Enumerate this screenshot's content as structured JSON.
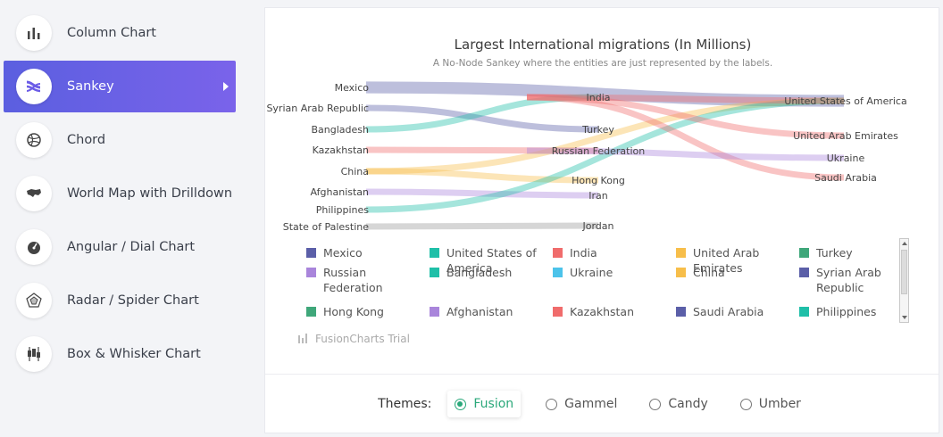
{
  "sidebar": {
    "items": [
      {
        "label": "Column Chart",
        "icon": "column-chart-icon"
      },
      {
        "label": "Sankey",
        "icon": "sankey-icon",
        "active": true
      },
      {
        "label": "Chord",
        "icon": "chord-icon"
      },
      {
        "label": "World Map with Drilldown",
        "icon": "world-map-icon"
      },
      {
        "label": "Angular / Dial Chart",
        "icon": "gauge-icon"
      },
      {
        "label": "Radar / Spider Chart",
        "icon": "radar-icon"
      },
      {
        "label": "Box & Whisker Chart",
        "icon": "box-whisker-icon"
      }
    ]
  },
  "chart": {
    "title": "Largest International migrations (In Millions)",
    "subtitle": "A No-Node Sankey where the entities are just represented by the labels."
  },
  "chart_data": {
    "type": "sankey",
    "title": "Largest International migrations (In Millions)",
    "subtitle": "A No-Node Sankey where the entities are just represented by the labels.",
    "source_nodes": [
      "Mexico",
      "Syrian Arab Republic",
      "Bangladesh",
      "Kazakhstan",
      "China",
      "Afghanistan",
      "Philippines",
      "State of Palestine"
    ],
    "middle_nodes": [
      "India",
      "Turkey",
      "Russian Federation",
      "Hong Kong",
      "Iran",
      "Jordan"
    ],
    "target_nodes": [
      "United States of America",
      "United Arab Emirates",
      "Ukraine",
      "Saudi Arabia"
    ],
    "links": [
      {
        "from": "Mexico",
        "to": "United States of America",
        "value": 12.7
      },
      {
        "from": "Syrian Arab Republic",
        "to": "Turkey",
        "value": 3.7
      },
      {
        "from": "Bangladesh",
        "to": "India",
        "value": 3.1
      },
      {
        "from": "Kazakhstan",
        "to": "Russian Federation",
        "value": 2.6
      },
      {
        "from": "China",
        "to": "United States of America",
        "value": 2.9
      },
      {
        "from": "China",
        "to": "Hong Kong",
        "value": 2.3
      },
      {
        "from": "Afghanistan",
        "to": "Iran",
        "value": 2.3
      },
      {
        "from": "Philippines",
        "to": "United States of America",
        "value": 2.1
      },
      {
        "from": "State of Palestine",
        "to": "Jordan",
        "value": 2.3
      },
      {
        "from": "India",
        "to": "United States of America",
        "value": 2.7
      },
      {
        "from": "India",
        "to": "United Arab Emirates",
        "value": 3.3
      },
      {
        "from": "India",
        "to": "Saudi Arabia",
        "value": 2.4
      },
      {
        "from": "Russian Federation",
        "to": "Ukraine",
        "value": 3.3
      }
    ],
    "legend": [
      "Mexico",
      "United States of America",
      "India",
      "United Arab Emirates",
      "Turkey",
      "Russian Federation",
      "Bangladesh",
      "Ukraine",
      "China",
      "Syrian Arab Republic",
      "Hong Kong",
      "Afghanistan",
      "Kazakhstan",
      "Saudi Arabia",
      "Philippines"
    ]
  },
  "legend_colors": {
    "Mexico": "#5b5fa8",
    "United States of America": "#1fbfa8",
    "India": "#f06c6c",
    "United Arab Emirates": "#f7be4a",
    "Turkey": "#3fa77a",
    "Russian Federation": "#a985db",
    "Bangladesh": "#1fbfa8",
    "Ukraine": "#4cc3ea",
    "China": "#f7be4a",
    "Syrian Arab Republic": "#5b5fa8",
    "Hong Kong": "#3fa77a",
    "Afghanistan": "#a985db",
    "Kazakhstan": "#f06c6c",
    "Saudi Arabia": "#5b5fa8",
    "Philippines": "#1fbfa8"
  },
  "watermark": "FusionCharts Trial",
  "themes": {
    "label": "Themes:",
    "options": [
      "Fusion",
      "Gammel",
      "Candy",
      "Umber"
    ],
    "selected": "Fusion"
  }
}
